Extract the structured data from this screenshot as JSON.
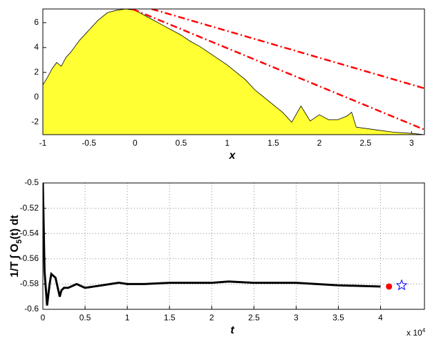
{
  "chart_data": [
    {
      "type": "area",
      "xlabel": "x",
      "xlim": [
        -1,
        3.14
      ],
      "ylim": [
        -3,
        7.1
      ],
      "xticks": [
        -1,
        -0.5,
        0,
        0.5,
        1,
        1.5,
        2,
        2.5,
        3
      ],
      "yticks": [
        -2,
        0,
        2,
        4,
        6
      ],
      "grid": false,
      "series": [
        {
          "type": "area",
          "color": "#ffff33",
          "x": [
            -1,
            -0.95,
            -0.9,
            -0.85,
            -0.8,
            -0.75,
            -0.7,
            -0.6,
            -0.5,
            -0.4,
            -0.3,
            -0.2,
            -0.1,
            0,
            0.1,
            0.2,
            0.3,
            0.4,
            0.5,
            0.6,
            0.7,
            0.8,
            0.9,
            1,
            1.1,
            1.2,
            1.3,
            1.4,
            1.5,
            1.6,
            1.7,
            1.8,
            1.9,
            2,
            2.1,
            2.2,
            2.3,
            2.35,
            2.4,
            2.6,
            2.8,
            3,
            3.14
          ],
          "values": [
            1,
            1.6,
            2.3,
            2.8,
            2.5,
            3.2,
            3.6,
            4.6,
            5.4,
            6.2,
            6.8,
            7,
            7.1,
            7,
            6.6,
            6.2,
            5.8,
            5.4,
            5,
            4.5,
            4.1,
            3.6,
            3.1,
            2.6,
            2,
            1.4,
            0.6,
            0,
            -0.6,
            -1.2,
            -2,
            -0.7,
            -1.9,
            -1.4,
            -1.8,
            -1.8,
            -1.5,
            -1.2,
            -2.4,
            -2.6,
            -2.8,
            -2.9,
            -3
          ]
        },
        {
          "type": "line",
          "color": "#ff0000",
          "linestyle": "-.",
          "x": [
            -0.03,
            3.14
          ],
          "values": [
            7.1,
            -2.6
          ]
        },
        {
          "type": "line",
          "color": "#ff0000",
          "linestyle": "-.",
          "x": [
            0.18,
            3.14
          ],
          "values": [
            7.1,
            0.72
          ]
        }
      ]
    },
    {
      "type": "line",
      "xlabel": "t",
      "ylabel": [
        "1/T ∫ O",
        "5",
        "(t) dt"
      ],
      "x_exponent": [
        "x 10",
        "4"
      ],
      "xlim": [
        0,
        45200
      ],
      "ylim": [
        -0.6,
        -0.5
      ],
      "xticks": [
        0,
        {
          "value": 5000,
          "label": "0.5"
        },
        {
          "value": 10000,
          "label": "1"
        },
        {
          "value": 15000,
          "label": "1.5"
        },
        {
          "value": 20000,
          "label": "2"
        },
        {
          "value": 25000,
          "label": "2.5"
        },
        {
          "value": 30000,
          "label": "3"
        },
        {
          "value": 35000,
          "label": "3.5"
        },
        {
          "value": 40000,
          "label": "4"
        }
      ],
      "yticks": [
        -0.6,
        -0.58,
        -0.56,
        -0.54,
        -0.52,
        -0.5
      ],
      "grid": true,
      "series": [
        {
          "type": "line",
          "color": "#000000",
          "linestyle": "-",
          "x": [
            0,
            200,
            500,
            800,
            1000,
            1500,
            2000,
            2200,
            2500,
            3000,
            4000,
            5000,
            6000,
            7000,
            8000,
            9000,
            10000,
            12000,
            15000,
            18000,
            20000,
            22000,
            25000,
            30000,
            35000,
            40000
          ],
          "values": [
            -0.5,
            -0.57,
            -0.597,
            -0.58,
            -0.572,
            -0.575,
            -0.59,
            -0.585,
            -0.583,
            -0.583,
            -0.58,
            -0.583,
            -0.582,
            -0.581,
            -0.58,
            -0.579,
            -0.58,
            -0.58,
            -0.579,
            -0.579,
            -0.579,
            -0.578,
            -0.579,
            -0.579,
            -0.581,
            -0.582
          ]
        },
        {
          "type": "dot",
          "color": "#ff0000",
          "x": [
            41000
          ],
          "values": [
            -0.582
          ]
        },
        {
          "type": "star",
          "color": "#0000ff",
          "x": [
            42500
          ],
          "values": [
            -0.581
          ]
        }
      ]
    }
  ]
}
